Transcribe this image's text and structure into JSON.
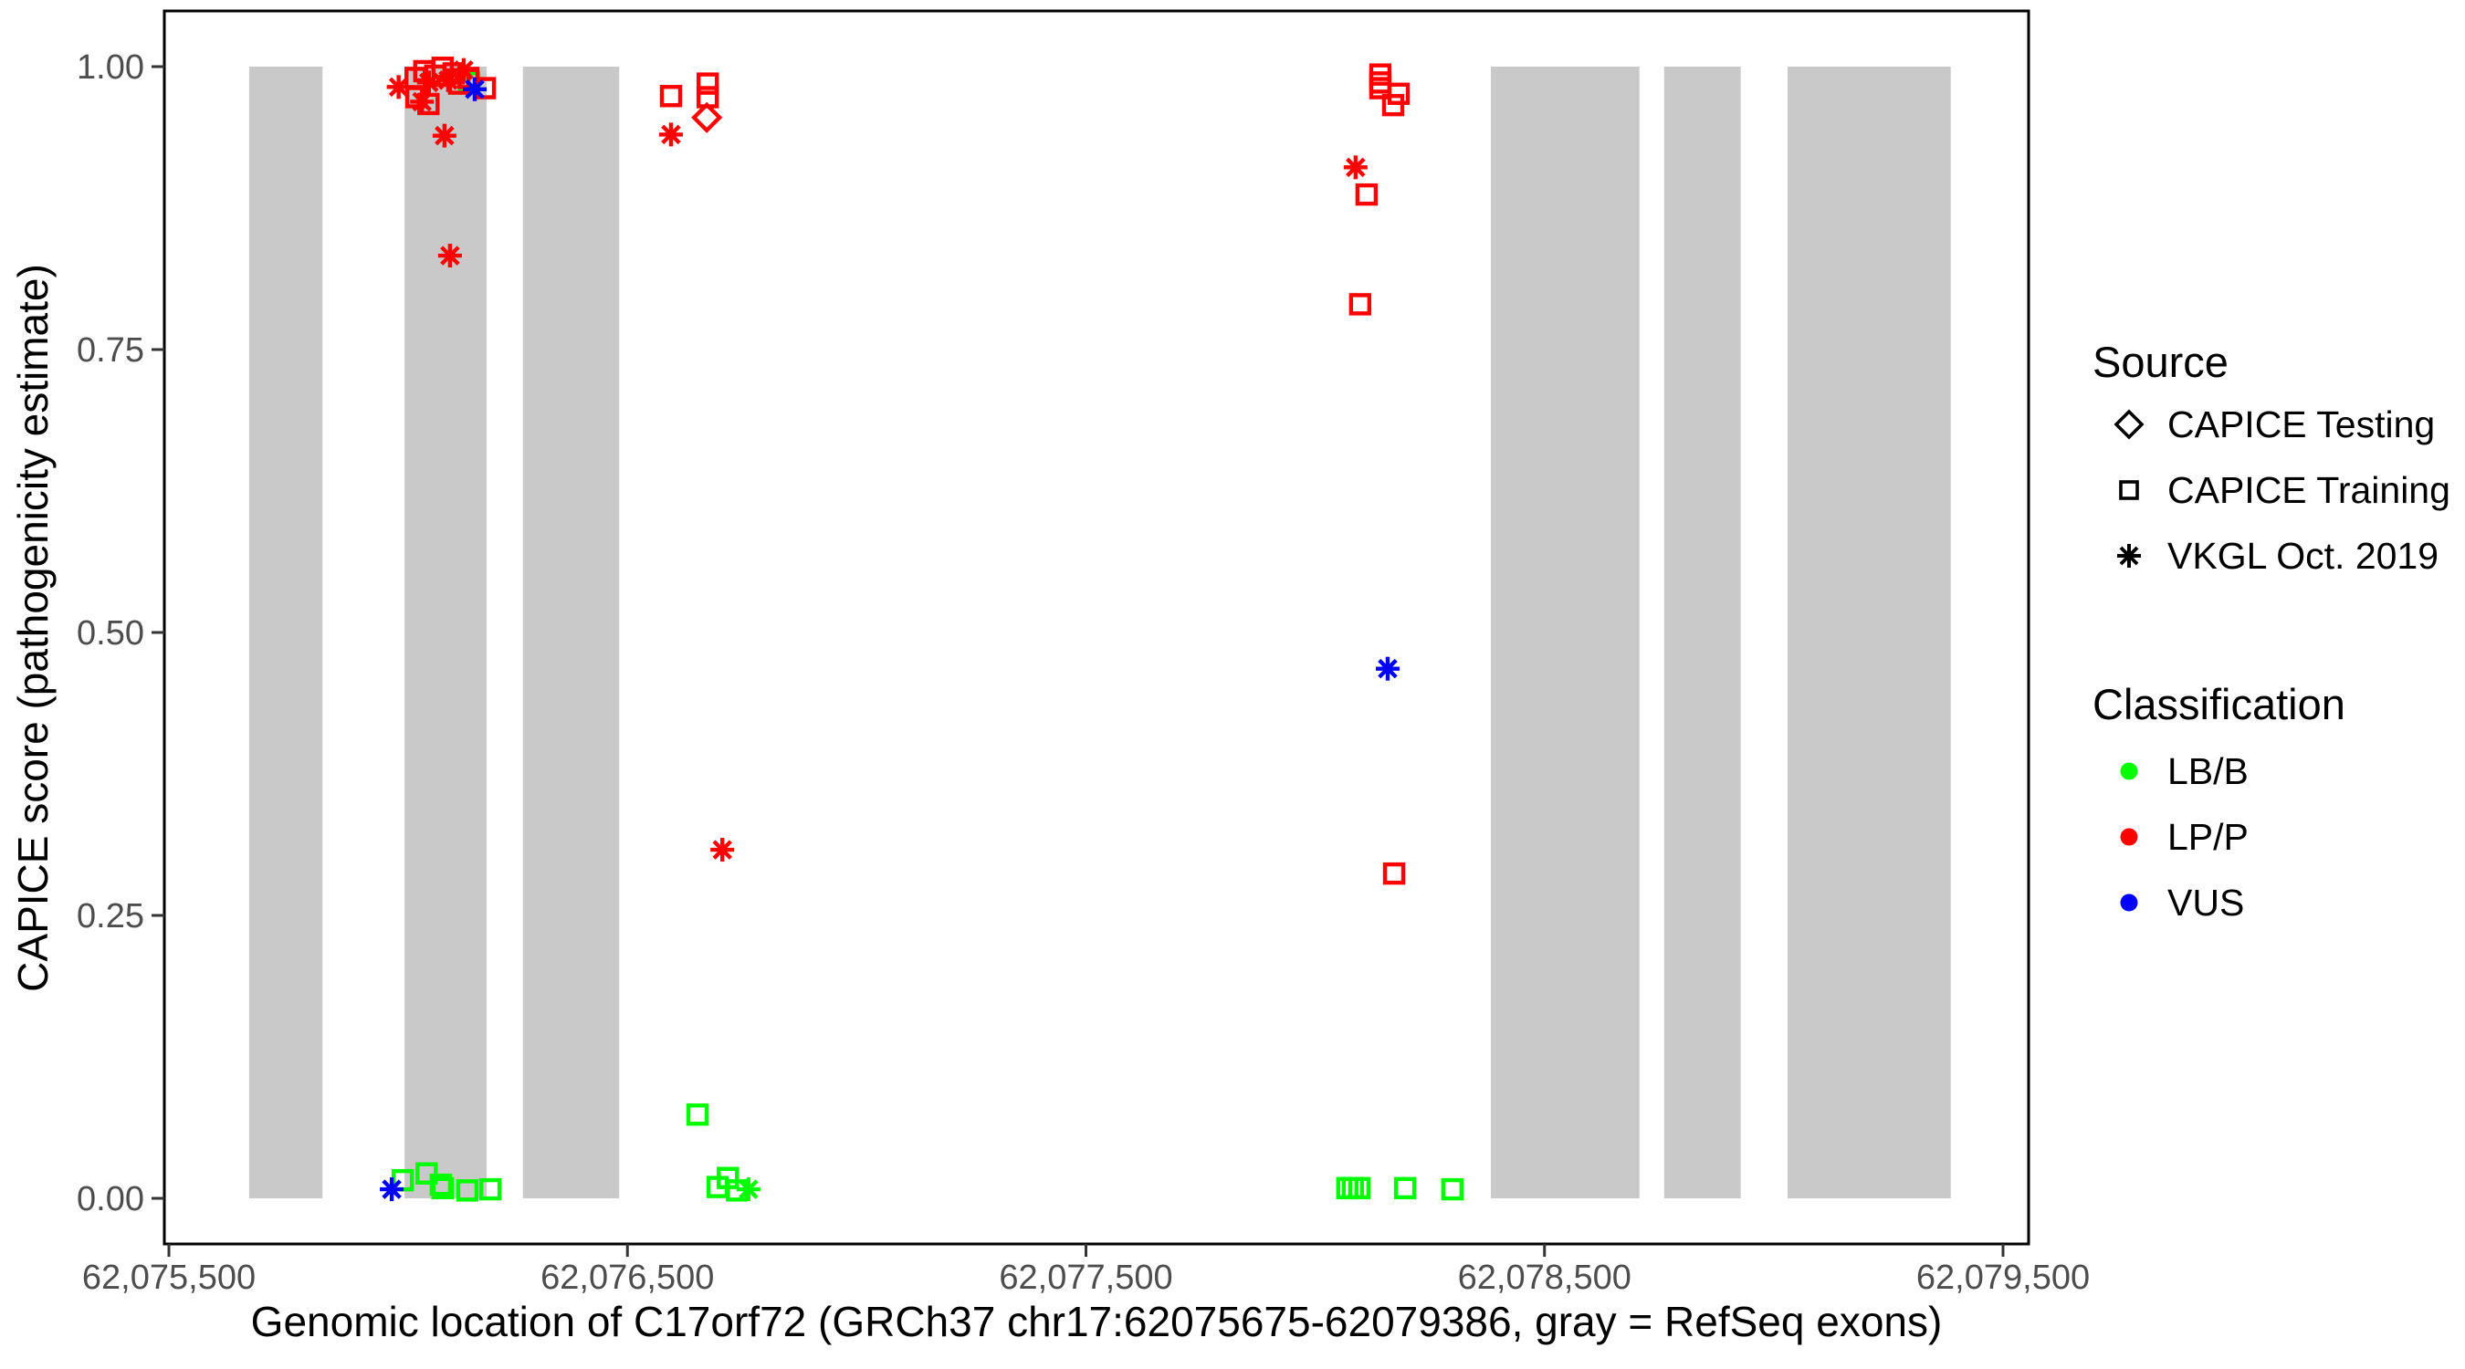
{
  "chart_data": {
    "type": "scatter",
    "title": "",
    "xlabel": "Genomic location of C17orf72 (GRCh37 chr17:62075675-62079386, gray = RefSeq exons)",
    "ylabel": "CAPICE score (pathogenicity estimate)",
    "xlim": [
      62075500,
      62079500
    ],
    "ylim": [
      0,
      1
    ],
    "grid": false,
    "legend_position": "right",
    "x_ticks": [
      {
        "value": 62075500,
        "label": "62,075,500"
      },
      {
        "value": 62076500,
        "label": "62,076,500"
      },
      {
        "value": 62077500,
        "label": "62,077,500"
      },
      {
        "value": 62078500,
        "label": "62,078,500"
      },
      {
        "value": 62079500,
        "label": "62,079,500"
      }
    ],
    "y_ticks": [
      {
        "value": 0.0,
        "label": "0.00"
      },
      {
        "value": 0.25,
        "label": "0.25"
      },
      {
        "value": 0.5,
        "label": "0.50"
      },
      {
        "value": 0.75,
        "label": "0.75"
      },
      {
        "value": 1.0,
        "label": "1.00"
      }
    ],
    "exon_color": "#c9c9c9",
    "exons_bp": [
      [
        62075675,
        62075835
      ],
      [
        62076014,
        62076193
      ],
      [
        62076272,
        62076482
      ],
      [
        62078383,
        62078707
      ],
      [
        62078761,
        62078928
      ],
      [
        62079030,
        62079386
      ]
    ],
    "points": [
      {
        "bp": 62076155,
        "score": 0.986,
        "source": "training",
        "classification": "LB/B"
      },
      {
        "bp": 62076010,
        "score": 0.016,
        "source": "training",
        "classification": "LB/B"
      },
      {
        "bp": 62076062,
        "score": 0.022,
        "source": "training",
        "classification": "LB/B"
      },
      {
        "bp": 62076093,
        "score": 0.012,
        "source": "training",
        "classification": "LB/B"
      },
      {
        "bp": 62076097,
        "score": 0.009,
        "source": "training",
        "classification": "LB/B"
      },
      {
        "bp": 62076151,
        "score": 0.007,
        "source": "training",
        "classification": "LB/B"
      },
      {
        "bp": 62076201,
        "score": 0.008,
        "source": "training",
        "classification": "LB/B"
      },
      {
        "bp": 62076653,
        "score": 0.074,
        "source": "training",
        "classification": "LB/B"
      },
      {
        "bp": 62076697,
        "score": 0.01,
        "source": "training",
        "classification": "LB/B"
      },
      {
        "bp": 62076719,
        "score": 0.018,
        "source": "training",
        "classification": "LB/B"
      },
      {
        "bp": 62076739,
        "score": 0.007,
        "source": "training",
        "classification": "LB/B"
      },
      {
        "bp": 62076764,
        "score": 0.008,
        "source": "vkgl",
        "classification": "LB/B"
      },
      {
        "bp": 62078070,
        "score": 0.009,
        "source": "training",
        "classification": "LB/B"
      },
      {
        "bp": 62078082,
        "score": 0.009,
        "source": "training",
        "classification": "LB/B"
      },
      {
        "bp": 62078096,
        "score": 0.009,
        "source": "training",
        "classification": "LB/B"
      },
      {
        "bp": 62078196,
        "score": 0.009,
        "source": "training",
        "classification": "LB/B"
      },
      {
        "bp": 62078299,
        "score": 0.008,
        "source": "training",
        "classification": "LB/B"
      },
      {
        "bp": 62076001,
        "score": 0.982,
        "source": "vkgl",
        "classification": "LP/P"
      },
      {
        "bp": 62076038,
        "score": 0.99,
        "source": "training",
        "classification": "LP/P"
      },
      {
        "bp": 62076057,
        "score": 0.996,
        "source": "training",
        "classification": "LP/P"
      },
      {
        "bp": 62076067,
        "score": 0.986,
        "source": "vkgl",
        "classification": "LP/P"
      },
      {
        "bp": 62076081,
        "score": 0.992,
        "source": "training",
        "classification": "LP/P"
      },
      {
        "bp": 62076097,
        "score": 0.999,
        "source": "training",
        "classification": "LP/P"
      },
      {
        "bp": 62076109,
        "score": 0.988,
        "source": "vkgl",
        "classification": "LP/P"
      },
      {
        "bp": 62076121,
        "score": 0.994,
        "source": "training",
        "classification": "LP/P"
      },
      {
        "bp": 62076133,
        "score": 0.985,
        "source": "training",
        "classification": "LP/P"
      },
      {
        "bp": 62076143,
        "score": 0.997,
        "source": "vkgl",
        "classification": "LP/P"
      },
      {
        "bp": 62076153,
        "score": 0.99,
        "source": "training",
        "classification": "LP/P"
      },
      {
        "bp": 62076189,
        "score": 0.981,
        "source": "training",
        "classification": "LP/P"
      },
      {
        "bp": 62076040,
        "score": 0.973,
        "source": "training",
        "classification": "LP/P"
      },
      {
        "bp": 62076052,
        "score": 0.969,
        "source": "vkgl",
        "classification": "LP/P"
      },
      {
        "bp": 62076066,
        "score": 0.967,
        "source": "training",
        "classification": "LP/P"
      },
      {
        "bp": 62076101,
        "score": 0.939,
        "source": "vkgl",
        "classification": "LP/P"
      },
      {
        "bp": 62076113,
        "score": 0.833,
        "source": "vkgl",
        "classification": "LP/P"
      },
      {
        "bp": 62076595,
        "score": 0.974,
        "source": "training",
        "classification": "LP/P"
      },
      {
        "bp": 62076675,
        "score": 0.985,
        "source": "training",
        "classification": "LP/P"
      },
      {
        "bp": 62076675,
        "score": 0.973,
        "source": "training",
        "classification": "LP/P"
      },
      {
        "bp": 62076673,
        "score": 0.955,
        "source": "testing",
        "classification": "LP/P"
      },
      {
        "bp": 62076595,
        "score": 0.94,
        "source": "vkgl",
        "classification": "LP/P"
      },
      {
        "bp": 62076707,
        "score": 0.308,
        "source": "vkgl",
        "classification": "LP/P"
      },
      {
        "bp": 62078142,
        "score": 0.993,
        "source": "training",
        "classification": "LP/P"
      },
      {
        "bp": 62078142,
        "score": 0.986,
        "source": "training",
        "classification": "LP/P"
      },
      {
        "bp": 62078142,
        "score": 0.981,
        "source": "training",
        "classification": "LP/P"
      },
      {
        "bp": 62078182,
        "score": 0.976,
        "source": "training",
        "classification": "LP/P"
      },
      {
        "bp": 62078170,
        "score": 0.966,
        "source": "training",
        "classification": "LP/P"
      },
      {
        "bp": 62078088,
        "score": 0.911,
        "source": "vkgl",
        "classification": "LP/P"
      },
      {
        "bp": 62078112,
        "score": 0.887,
        "source": "training",
        "classification": "LP/P"
      },
      {
        "bp": 62078098,
        "score": 0.79,
        "source": "training",
        "classification": "LP/P"
      },
      {
        "bp": 62078172,
        "score": 0.287,
        "source": "training",
        "classification": "LP/P"
      },
      {
        "bp": 62076167,
        "score": 0.98,
        "source": "vkgl",
        "classification": "VUS"
      },
      {
        "bp": 62075986,
        "score": 0.008,
        "source": "vkgl",
        "classification": "VUS"
      },
      {
        "bp": 62078158,
        "score": 0.468,
        "source": "vkgl",
        "classification": "VUS"
      }
    ]
  },
  "legend": {
    "source": {
      "title": "Source",
      "items": [
        {
          "label": "CAPICE Testing",
          "shape": "diamond-icon"
        },
        {
          "label": "CAPICE Training",
          "shape": "square-icon"
        },
        {
          "label": "VKGL Oct. 2019",
          "shape": "asterisk-icon"
        }
      ]
    },
    "classification": {
      "title": "Classification",
      "items": [
        {
          "label": "LB/B",
          "color": "#00ff00"
        },
        {
          "label": "LP/P",
          "color": "#ff0000"
        },
        {
          "label": "VUS",
          "color": "#0000ff"
        }
      ]
    }
  },
  "colors": {
    "LB/B": "#00ff00",
    "LP/P": "#ff0000",
    "VUS": "#0000ff",
    "exon": "#c9c9c9",
    "tick_text": "#4d4d4d",
    "axis_line": "#000000"
  }
}
